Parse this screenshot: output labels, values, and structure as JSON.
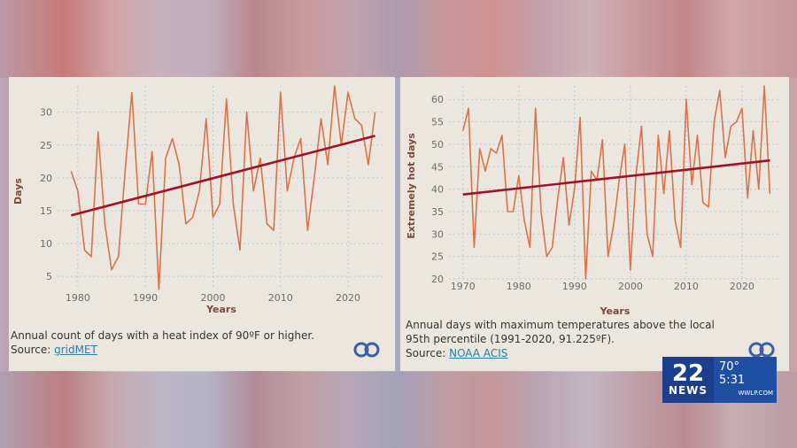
{
  "chart_data": [
    {
      "type": "line",
      "xlabel": "Years",
      "ylabel": "Days",
      "xlim": [
        1977,
        2025.5
      ],
      "ylim": [
        3,
        34
      ],
      "xticks": [
        1980,
        1990,
        2000,
        2010,
        2020
      ],
      "yticks": [
        5,
        10,
        15,
        20,
        25,
        30
      ],
      "grid": true,
      "series": [
        {
          "x": [
            1979,
            1980,
            1981,
            1982,
            1983,
            1984,
            1985,
            1986,
            1987,
            1988,
            1989,
            1990,
            1991,
            1992,
            1993,
            1994,
            1995,
            1996,
            1997,
            1998,
            1999,
            2000,
            2001,
            2002,
            2003,
            2004,
            2005,
            2006,
            2007,
            2008,
            2009,
            2010,
            2011,
            2012,
            2013,
            2014,
            2015,
            2016,
            2017,
            2018,
            2019,
            2020,
            2021,
            2022,
            2023,
            2024
          ],
          "values": [
            21,
            18,
            9,
            8,
            27,
            13,
            6,
            8,
            21,
            33,
            16,
            16,
            24,
            3,
            23,
            26,
            22,
            13,
            14,
            18,
            29,
            14,
            16,
            32,
            16,
            9,
            30,
            18,
            23,
            13,
            12,
            33,
            18,
            23,
            26,
            12,
            20,
            29,
            22,
            34,
            25,
            33,
            29,
            28,
            22,
            30
          ],
          "color": "#d9744a"
        },
        {
          "x": [
            1979,
            2024
          ],
          "values": [
            14.3,
            26.4
          ],
          "color": "#a11226"
        }
      ],
      "caption": "Annual count of days with a heat index of 90ºF or higher.",
      "source_label": "Source:",
      "source_name": "gridMET"
    },
    {
      "type": "line",
      "xlabel": "Years",
      "ylabel": "Extremely hot days",
      "xlim": [
        1967.5,
        2027
      ],
      "ylim": [
        20,
        63
      ],
      "xticks": [
        1970,
        1980,
        1990,
        2000,
        2010,
        2020
      ],
      "yticks": [
        20,
        25,
        30,
        35,
        40,
        45,
        50,
        55,
        60
      ],
      "grid": true,
      "series": [
        {
          "x": [
            1970,
            1971,
            1972,
            1973,
            1974,
            1975,
            1976,
            1977,
            1978,
            1979,
            1980,
            1981,
            1982,
            1983,
            1984,
            1985,
            1986,
            1987,
            1988,
            1989,
            1990,
            1991,
            1992,
            1993,
            1994,
            1995,
            1996,
            1997,
            1998,
            1999,
            2000,
            2001,
            2002,
            2003,
            2004,
            2005,
            2006,
            2007,
            2008,
            2009,
            2010,
            2011,
            2012,
            2013,
            2014,
            2015,
            2016,
            2017,
            2018,
            2019,
            2020,
            2021,
            2022,
            2023,
            2024,
            2025
          ],
          "values": [
            53,
            58,
            27,
            49,
            44,
            49,
            48,
            52,
            35,
            35,
            43,
            33,
            27,
            58,
            35,
            25,
            27,
            38,
            47,
            32,
            40,
            56,
            20,
            44,
            42,
            51,
            25,
            32,
            42,
            50,
            22,
            43,
            54,
            30,
            25,
            52,
            39,
            53,
            33,
            27,
            60,
            41,
            52,
            37,
            36,
            55,
            62,
            47,
            54,
            55,
            58,
            38,
            53,
            40,
            63,
            39
          ],
          "color": "#d9744a"
        },
        {
          "x": [
            1970,
            2025
          ],
          "values": [
            38.8,
            46.4
          ],
          "color": "#a11226"
        }
      ],
      "caption": "Annual days with maximum temperatures above the local 95th percentile (1991-2020, 91.225ºF).",
      "source_label": "Source:",
      "source_name": "NOAA ACIS"
    }
  ],
  "news": {
    "channel_number": "22",
    "channel_word": "NEWS",
    "temperature": "70°",
    "time": "5:31",
    "url": "WWLP.COM"
  },
  "colors": {
    "panel_bg": "#ebe7df",
    "data_line": "#d9744a",
    "trend_line": "#a11226",
    "grid": "#b9c6dc",
    "link": "#2a7ea0",
    "news_blue": "#1f4fa3"
  }
}
